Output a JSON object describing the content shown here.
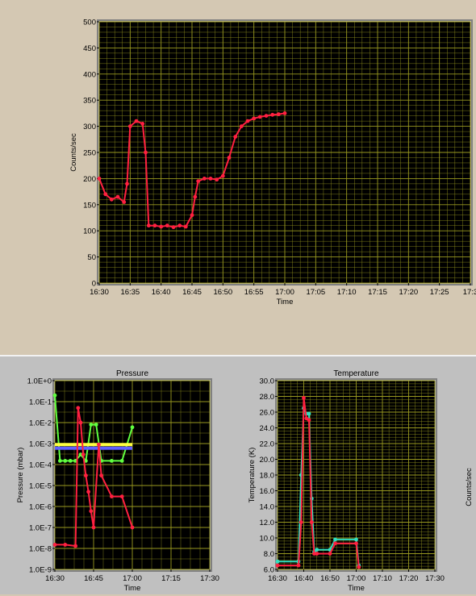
{
  "chart_data": [
    {
      "type": "line",
      "title": "",
      "xlabel": "Time",
      "ylabel": "Counts/sec",
      "xlim": [
        "16:30",
        "17:30"
      ],
      "ylim": [
        0,
        500
      ],
      "x_ticks": [
        "16:30",
        "16:35",
        "16:40",
        "16:45",
        "16:50",
        "16:55",
        "17:00",
        "17:05",
        "17:10",
        "17:15",
        "17:20",
        "17:25",
        "17:3"
      ],
      "y_ticks": [
        "0",
        "50",
        "100",
        "150",
        "200",
        "250",
        "300",
        "350",
        "400",
        "450",
        "500"
      ],
      "grid": true,
      "series": [
        {
          "color": "#ff2040",
          "x": [
            "16:30",
            "16:31",
            "16:32",
            "16:33",
            "16:34",
            "16:34.5",
            "16:35",
            "16:36",
            "16:37",
            "16:37.5",
            "16:38",
            "16:39",
            "16:40",
            "16:41",
            "16:42",
            "16:43",
            "16:44",
            "16:45",
            "16:45.5",
            "16:46",
            "16:47",
            "16:48",
            "16:49",
            "16:50",
            "16:51",
            "16:52",
            "16:53",
            "16:54",
            "16:55",
            "16:56",
            "16:57",
            "16:58",
            "16:59",
            "17:00"
          ],
          "values": [
            200,
            170,
            160,
            165,
            155,
            190,
            300,
            310,
            305,
            250,
            110,
            110,
            108,
            110,
            107,
            110,
            108,
            130,
            165,
            195,
            200,
            200,
            198,
            205,
            240,
            280,
            300,
            310,
            315,
            318,
            320,
            322,
            323,
            325
          ]
        }
      ]
    },
    {
      "type": "line",
      "title": "Pressure",
      "xlabel": "Time",
      "ylabel": "Pressure (mbar)",
      "log_scale_y": true,
      "xlim": [
        "16:30",
        "17:30"
      ],
      "ylim": [
        1e-09,
        1
      ],
      "x_ticks": [
        "16:30",
        "16:45",
        "17:00",
        "17:15",
        "17:30"
      ],
      "y_ticks": [
        "1.0E-9",
        "1.0E-8",
        "1.0E-7",
        "1.0E-6",
        "1.0E-5",
        "1.0E-4",
        "1.0E-3",
        "1.0E-2",
        "1.0E-1",
        "1.0E+0"
      ],
      "grid": true,
      "series": [
        {
          "color": "#60ff40",
          "x": [
            "16:30",
            "16:32",
            "16:34",
            "16:36",
            "16:38",
            "16:40",
            "16:42",
            "16:44",
            "16:46",
            "16:48",
            "16:52",
            "16:56",
            "17:00"
          ],
          "values": [
            0.2,
            0.00015,
            0.00015,
            0.00015,
            0.00015,
            0.0003,
            0.00015,
            0.008,
            0.008,
            0.00015,
            0.00015,
            0.00015,
            0.006
          ]
        },
        {
          "color": "#ffff40",
          "x": [
            "16:30",
            "17:00"
          ],
          "values": [
            0.0009,
            0.0009
          ]
        },
        {
          "color": "#6060ff",
          "x": [
            "16:30",
            "17:00"
          ],
          "values": [
            0.0006,
            0.0006
          ]
        },
        {
          "color": "#ff2040",
          "x": [
            "16:30",
            "16:34",
            "16:38",
            "16:39",
            "16:40",
            "16:41",
            "16:42",
            "16:43",
            "16:44",
            "16:45",
            "16:47",
            "16:48",
            "16:52",
            "16:56",
            "17:00"
          ],
          "values": [
            1.5e-08,
            1.5e-08,
            1.3e-08,
            0.05,
            0.01,
            0.0003,
            3e-05,
            5e-06,
            6e-07,
            1e-07,
            0.0009,
            3e-05,
            3e-06,
            3e-06,
            1e-07
          ]
        }
      ]
    },
    {
      "type": "line",
      "title": "Temperature",
      "xlabel": "Time",
      "ylabel": "Temperature (K)",
      "xlim": [
        "16:30",
        "17:30"
      ],
      "ylim": [
        6,
        30
      ],
      "x_ticks": [
        "16:30",
        "16:40",
        "16:50",
        "17:00",
        "17:10",
        "17:20",
        "17:30"
      ],
      "y_ticks": [
        "6.0",
        "8.0",
        "10.0",
        "12.0",
        "14.0",
        "16.0",
        "18.0",
        "20.0",
        "22.0",
        "24.0",
        "26.0",
        "28.0",
        "30.0"
      ],
      "grid": true,
      "series": [
        {
          "color": "#30e0c0",
          "x": [
            "16:30",
            "16:38",
            "16:39",
            "16:40",
            "16:41",
            "16:42",
            "16:43",
            "16:44",
            "16:45",
            "16:50",
            "16:52",
            "17:00",
            "17:01"
          ],
          "values": [
            7.0,
            7.0,
            18,
            26.5,
            25.8,
            25.8,
            15,
            8.2,
            8.5,
            8.5,
            9.8,
            9.8,
            6.5
          ]
        },
        {
          "color": "#ff2040",
          "x": [
            "16:30",
            "16:38",
            "16:39",
            "16:40",
            "16:41",
            "16:42",
            "16:43",
            "16:44",
            "16:45",
            "16:50",
            "16:52",
            "17:00",
            "17:01"
          ],
          "values": [
            6.5,
            6.5,
            12,
            27.8,
            25.2,
            25.0,
            12,
            8.0,
            8.0,
            8.0,
            9.3,
            9.3,
            6.3
          ]
        }
      ]
    }
  ],
  "colors": {
    "plot_bg": "#000000",
    "grid": "#9a9a20",
    "frame": "#808080"
  },
  "right_clip_label": "Counts/sec"
}
